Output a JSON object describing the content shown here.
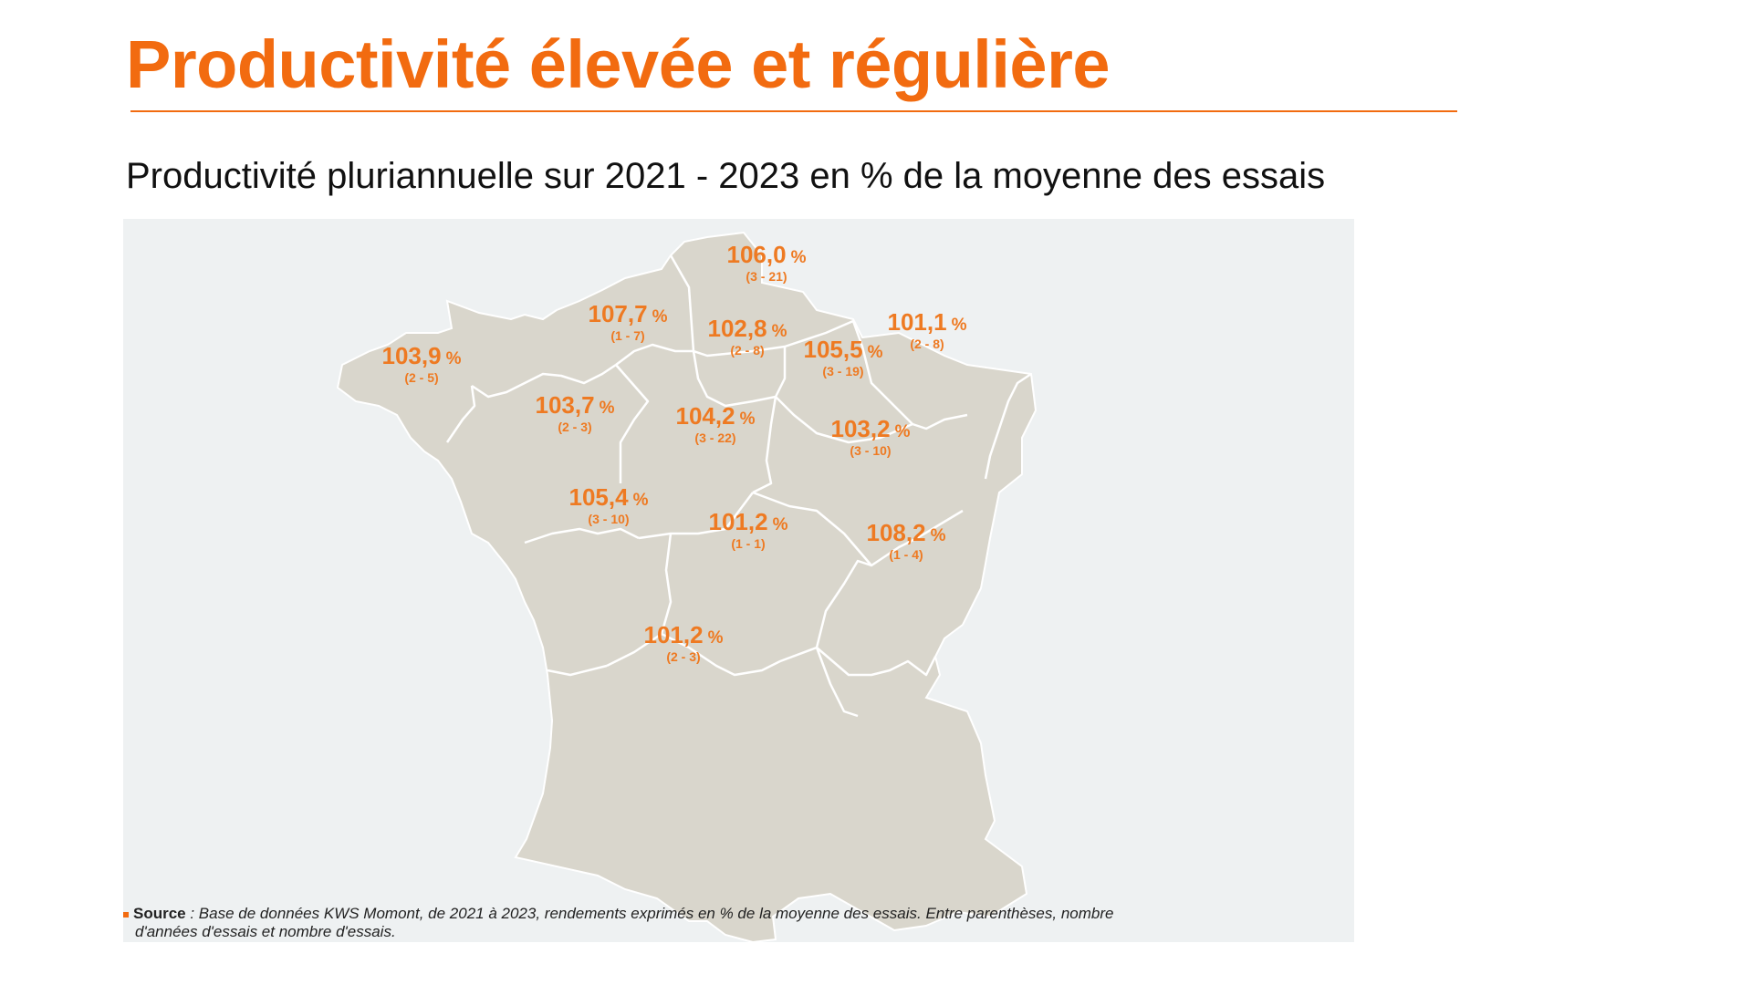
{
  "slide": {
    "title": "Productivité élevée et régulière",
    "subtitle": "Productivité pluriannuelle sur 2021 - 2023 en % de la moyenne des essais"
  },
  "map": {
    "regions": [
      {
        "id": "nord",
        "value": "106,0",
        "unit": "%",
        "count": "(3 - 21)"
      },
      {
        "id": "normandie",
        "value": "107,7",
        "unit": "%",
        "count": "(1 - 7)"
      },
      {
        "id": "ile-de-france",
        "value": "102,8",
        "unit": "%",
        "count": "(2 - 8)"
      },
      {
        "id": "champagne",
        "value": "105,5",
        "unit": "%",
        "count": "(3 - 19)"
      },
      {
        "id": "lorraine",
        "value": "101,1",
        "unit": "%",
        "count": "(2 - 8)"
      },
      {
        "id": "bretagne",
        "value": "103,9",
        "unit": "%",
        "count": "(2 - 5)"
      },
      {
        "id": "pays-de-la-loire",
        "value": "103,7",
        "unit": "%",
        "count": "(2 - 3)"
      },
      {
        "id": "centre",
        "value": "104,2",
        "unit": "%",
        "count": "(3 - 22)"
      },
      {
        "id": "bourgogne",
        "value": "103,2",
        "unit": "%",
        "count": "(3 - 10)"
      },
      {
        "id": "poitou-charentes",
        "value": "105,4",
        "unit": "%",
        "count": "(3 - 10)"
      },
      {
        "id": "limousin-auvergne",
        "value": "101,2",
        "unit": "%",
        "count": "(1 - 1)"
      },
      {
        "id": "rhone-alpes",
        "value": "108,2",
        "unit": "%",
        "count": "(1 - 4)"
      },
      {
        "id": "sud-ouest",
        "value": "101,2",
        "unit": "%",
        "count": "(2 - 3)"
      }
    ]
  },
  "footnote": {
    "label": "Source",
    "text": " : Base de données KWS Momont, de 2021 à 2023, rendements exprimés en % de la moyenne des essais. Entre parenthèses, nombre",
    "text_line2": "d'années d'essais et nombre d'essais."
  },
  "colors": {
    "accent": "#F26B10",
    "label": "#EE7A22",
    "panel_bg": "#EEF1F2",
    "land": "#D9D6CC",
    "border": "#FFFFFF"
  }
}
